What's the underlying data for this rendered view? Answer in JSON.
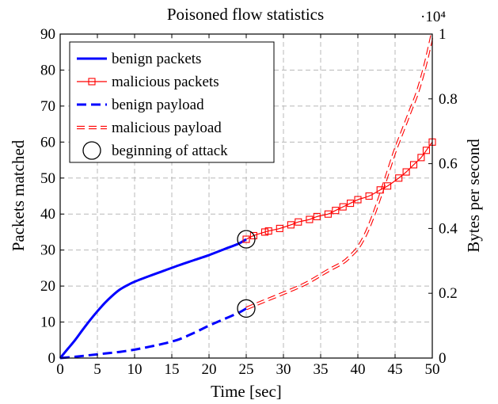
{
  "chart_data": {
    "type": "line",
    "title": "Poisoned flow statistics",
    "xlabel": "Time [sec]",
    "ylabel": "Packets matched",
    "y2label": "Bytes per second",
    "xlim": [
      0,
      50
    ],
    "ylim": [
      0,
      90
    ],
    "y2lim": [
      0,
      10000
    ],
    "x_ticks": [
      0,
      5,
      10,
      15,
      20,
      25,
      30,
      35,
      40,
      45,
      50
    ],
    "y_ticks": [
      0,
      10,
      20,
      30,
      40,
      50,
      60,
      70,
      80,
      90
    ],
    "y2_ticks": [
      0,
      0.2,
      0.4,
      0.6,
      0.8,
      1
    ],
    "y2_scale_label": "·10⁴",
    "grid": true,
    "legend_position": "top-left",
    "series": [
      {
        "name": "benign packets",
        "axis": "left",
        "color": "#0000ff",
        "style": "solid",
        "x": [
          0,
          1,
          2,
          3,
          4,
          5,
          6,
          7,
          8,
          9,
          10,
          12,
          14,
          16,
          18,
          20,
          22,
          24,
          25
        ],
        "y": [
          0,
          2.5,
          5,
          7.8,
          10.5,
          13,
          15.3,
          17.3,
          19,
          20.2,
          21.2,
          22.8,
          24.3,
          25.8,
          27.2,
          28.6,
          30.2,
          31.8,
          33
        ]
      },
      {
        "name": "malicious packets",
        "axis": "left",
        "color": "#ff0000",
        "style": "solid-square-markers",
        "x": [
          25,
          26,
          27.5,
          28,
          29.5,
          31,
          32,
          33.5,
          34.5,
          36,
          37,
          38,
          39,
          40,
          41.5,
          43,
          44,
          45.5,
          46.5,
          47.5,
          48.5,
          49.2,
          50
        ],
        "y": [
          33,
          34,
          35,
          35.3,
          36,
          37,
          37.8,
          38.5,
          39.3,
          40,
          41,
          42,
          43,
          44,
          45,
          46.7,
          47.8,
          50,
          51.7,
          53.7,
          55.7,
          57.7,
          60
        ]
      },
      {
        "name": "benign payload",
        "axis": "right",
        "color": "#0000ff",
        "style": "dashed",
        "x": [
          0,
          2,
          4,
          6,
          8,
          10,
          12,
          14,
          16,
          18,
          20,
          22,
          24,
          25
        ],
        "y": [
          0,
          40,
          90,
          140,
          190,
          260,
          350,
          450,
          580,
          780,
          1000,
          1200,
          1400,
          1530
        ]
      },
      {
        "name": "malicious payload",
        "axis": "right",
        "color": "#ff0000",
        "style": "double-dashed",
        "x": [
          25,
          27,
          30,
          33,
          36,
          38,
          39,
          40,
          41,
          42,
          43,
          44,
          45,
          46,
          47,
          48,
          49,
          50
        ],
        "y": [
          1530,
          1720,
          2000,
          2300,
          2700,
          2950,
          3150,
          3400,
          3800,
          4350,
          5000,
          5700,
          6400,
          7000,
          7600,
          8200,
          9000,
          10000
        ]
      }
    ],
    "annotations": [
      {
        "name": "beginning of attack",
        "marker": "circle",
        "points": [
          {
            "x": 25,
            "y": 33,
            "axis": "left"
          },
          {
            "x": 25,
            "y": 1530,
            "axis": "right"
          }
        ]
      }
    ]
  }
}
